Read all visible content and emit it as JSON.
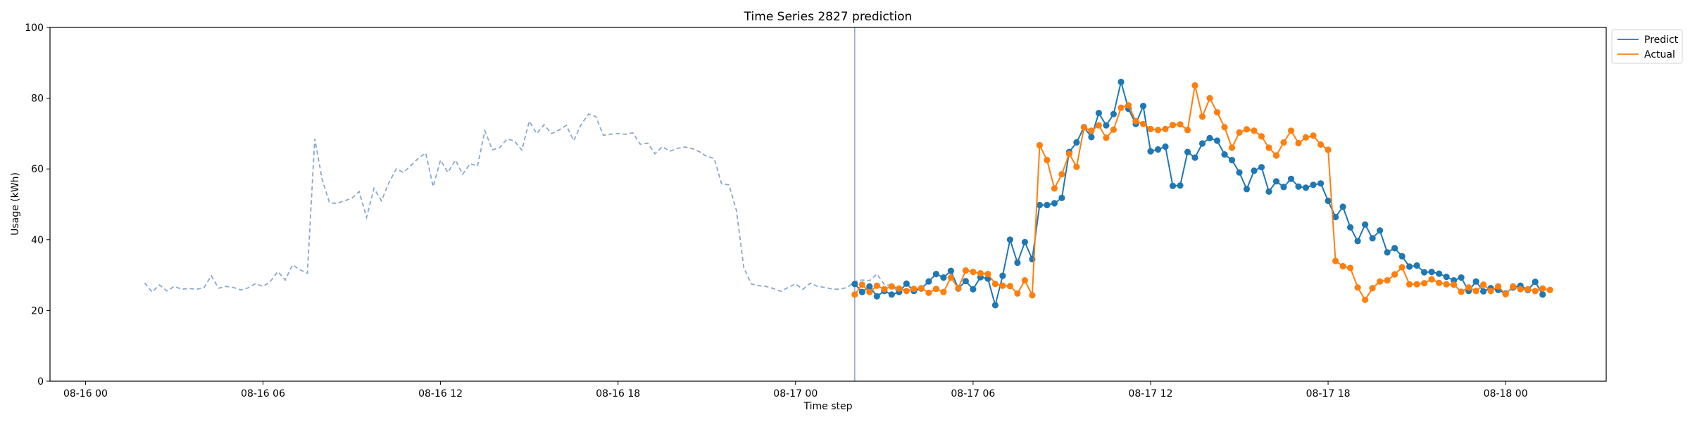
{
  "chart_data": {
    "type": "line",
    "title": "Time Series 2827 prediction",
    "xlabel": "Time step",
    "ylabel": "Usage (kWh)",
    "ylim": [
      0,
      100
    ],
    "yticks": [
      0,
      20,
      40,
      60,
      80,
      100
    ],
    "xlim_hours": [
      -1.2,
      51.4
    ],
    "xticks": [
      {
        "label": "08-16 00",
        "hour": 0
      },
      {
        "label": "08-16 06",
        "hour": 6
      },
      {
        "label": "08-16 12",
        "hour": 12
      },
      {
        "label": "08-16 18",
        "hour": 18
      },
      {
        "label": "08-17 00",
        "hour": 24
      },
      {
        "label": "08-17 06",
        "hour": 30
      },
      {
        "label": "08-17 12",
        "hour": 36
      },
      {
        "label": "08-17 18",
        "hour": 42
      },
      {
        "label": "08-18 00",
        "hour": 48
      }
    ],
    "forecast_start_hour": 26,
    "grid": false,
    "legend_position": "outside-top-right",
    "colors": {
      "predict": "#1f77b4",
      "actual": "#ff7f0e",
      "history": "#8aa8cc",
      "divider": "#8aa8cc"
    },
    "history": {
      "start_hour": 2.0,
      "step_hours": 0.25,
      "values": [
        27.8,
        25.2,
        27.2,
        25.5,
        26.8,
        26.0,
        26.2,
        26.0,
        26.4,
        29.8,
        26.3,
        26.8,
        26.5,
        25.8,
        26.4,
        27.6,
        26.8,
        28.2,
        31.0,
        28.6,
        32.9,
        31.5,
        30.5,
        68.5,
        57.0,
        50.4,
        50.3,
        51.0,
        51.7,
        53.6,
        46.3,
        54.5,
        51.0,
        56.0,
        60.0,
        59.0,
        61.0,
        63.0,
        64.5,
        55.0,
        62.5,
        59.0,
        62.5,
        58.5,
        61.5,
        60.8,
        70.8,
        65.4,
        66.0,
        68.5,
        67.9,
        65.3,
        73.5,
        70.0,
        72.5,
        70.0,
        71.0,
        72.3,
        68.0,
        72.5,
        75.5,
        74.8,
        69.5,
        69.8,
        70.0,
        69.8,
        70.2,
        67.0,
        67.3,
        64.3,
        66.3,
        65.0,
        65.8,
        66.2,
        65.8,
        64.9,
        63.5,
        63.0,
        55.8,
        55.5,
        48.3,
        32.1,
        27.5,
        27.0,
        26.8,
        26.2,
        25.4,
        26.5,
        27.5,
        26.0,
        27.7,
        26.8,
        26.5,
        26.0,
        26.0,
        26.5,
        28.2,
        28.6,
        28.4,
        30.3,
        27.3,
        27.0,
        25.0
      ]
    },
    "series": [
      {
        "name": "Predict",
        "start_hour": 26.0,
        "step_hours": 0.25,
        "values": [
          27.5,
          25.2,
          26.8,
          24.0,
          25.5,
          24.5,
          25.2,
          27.6,
          25.5,
          26.2,
          28.2,
          30.3,
          29.3,
          31.2,
          26.2,
          28.3,
          26.0,
          29.4,
          29.0,
          21.5,
          29.8,
          40.0,
          33.5,
          39.3,
          34.5,
          49.8,
          49.8,
          50.3,
          51.8,
          64.8,
          67.5,
          71.8,
          69.0,
          75.8,
          72.3,
          75.5,
          84.6,
          77.0,
          72.7,
          77.8,
          65.0,
          65.5,
          66.3,
          55.2,
          55.3,
          64.8,
          63.2,
          67.2,
          68.7,
          68.0,
          64.1,
          62.5,
          59.0,
          54.3,
          59.5,
          60.5,
          53.6,
          56.5,
          54.9,
          57.2,
          55.0,
          54.7,
          55.5,
          55.9,
          51.0,
          46.4,
          49.3,
          43.5,
          39.6,
          44.3,
          40.4,
          42.6,
          36.4,
          37.6,
          35.3,
          32.4,
          32.7,
          30.8,
          30.9,
          30.4,
          29.5,
          28.5,
          29.3,
          25.5,
          28.2,
          25.4,
          26.3,
          25.8,
          24.8,
          26.5,
          27.0,
          25.8,
          28.1,
          24.5
        ]
      },
      {
        "name": "Actual",
        "start_hour": 26.0,
        "step_hours": 0.25,
        "values": [
          24.5,
          27.3,
          25.2,
          27.0,
          26.0,
          26.8,
          26.2,
          25.5,
          26.1,
          26.3,
          25.0,
          26.1,
          25.2,
          29.3,
          26.3,
          31.3,
          30.9,
          30.5,
          30.3,
          27.5,
          27.0,
          26.9,
          24.8,
          28.5,
          24.3,
          66.7,
          62.5,
          54.5,
          58.5,
          64.3,
          60.6,
          71.7,
          70.8,
          72.3,
          68.8,
          71.1,
          77.3,
          78.0,
          73.5,
          72.7,
          71.3,
          71.0,
          71.3,
          72.4,
          72.6,
          71.0,
          83.6,
          74.8,
          80.0,
          76.0,
          71.8,
          66.0,
          70.3,
          71.2,
          70.8,
          69.2,
          66.0,
          63.8,
          67.5,
          70.8,
          67.3,
          68.9,
          69.4,
          66.9,
          65.4,
          34.0,
          32.5,
          32.0,
          26.5,
          23.0,
          26.3,
          28.2,
          28.5,
          30.2,
          32.2,
          27.4,
          27.4,
          27.7,
          28.8,
          27.8,
          27.4,
          27.3,
          25.3,
          26.5,
          25.5,
          27.3,
          25.5,
          26.8,
          24.6,
          26.8,
          26.0,
          26.0,
          25.5,
          26.2,
          25.8
        ]
      }
    ]
  }
}
